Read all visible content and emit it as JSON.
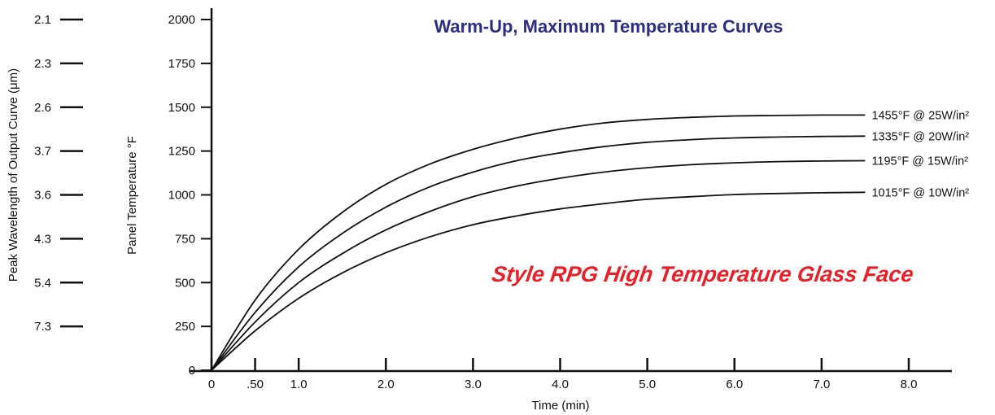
{
  "chart_data": {
    "type": "line",
    "title": "Warm-Up, Maximum Temperature Curves",
    "subtitle": "Style RPG High Temperature Glass Face",
    "colors": {
      "title": "#2b2e83",
      "subtitle": "#e8202a",
      "line": "#111111"
    },
    "xlabel": "Time (min)",
    "ylabel": "Panel Temperature °F",
    "secondary_ylabel": "Peak Wavelength of Output Curve (μm)",
    "xlim": [
      0,
      8.5
    ],
    "ylim": [
      0,
      2000
    ],
    "grid": false,
    "x_ticks": [
      {
        "value": 0,
        "label": "0"
      },
      {
        "value": 0.5,
        "label": ".50"
      },
      {
        "value": 1.0,
        "label": "1.0"
      },
      {
        "value": 2.0,
        "label": "2.0"
      },
      {
        "value": 3.0,
        "label": "3.0"
      },
      {
        "value": 4.0,
        "label": "4.0"
      },
      {
        "value": 5.0,
        "label": "5.0"
      },
      {
        "value": 6.0,
        "label": "6.0"
      },
      {
        "value": 7.0,
        "label": "7.0"
      },
      {
        "value": 8.0,
        "label": "8.0"
      }
    ],
    "y_ticks": [
      {
        "value": 0,
        "label": "0"
      },
      {
        "value": 250,
        "label": "250"
      },
      {
        "value": 500,
        "label": "500"
      },
      {
        "value": 750,
        "label": "750"
      },
      {
        "value": 1000,
        "label": "1000"
      },
      {
        "value": 1250,
        "label": "1250"
      },
      {
        "value": 1500,
        "label": "1500"
      },
      {
        "value": 1750,
        "label": "1750"
      },
      {
        "value": 2000,
        "label": "2000"
      }
    ],
    "wavelength_ticks": [
      {
        "value": 2000,
        "label": "2.1"
      },
      {
        "value": 1750,
        "label": "2.3"
      },
      {
        "value": 1500,
        "label": "2.6"
      },
      {
        "value": 1250,
        "label": "3.7"
      },
      {
        "value": 1000,
        "label": "3.6"
      },
      {
        "value": 750,
        "label": "4.3"
      },
      {
        "value": 500,
        "label": "5.4"
      },
      {
        "value": 250,
        "label": "7.3"
      }
    ],
    "series": [
      {
        "name": "1455°F @ 25W/in²",
        "x": [
          0,
          0.5,
          1,
          1.5,
          2,
          2.5,
          3,
          3.5,
          4,
          4.5,
          5,
          5.5,
          6,
          6.5,
          7,
          7.5
        ],
        "y": [
          0,
          400,
          690,
          900,
          1060,
          1175,
          1260,
          1325,
          1375,
          1410,
          1430,
          1442,
          1450,
          1453,
          1455,
          1455
        ]
      },
      {
        "name": "1335°F @ 20W/in²",
        "x": [
          0,
          0.5,
          1,
          1.5,
          2,
          2.5,
          3,
          3.5,
          4,
          4.5,
          5,
          5.5,
          6,
          6.5,
          7,
          7.5
        ],
        "y": [
          0,
          330,
          590,
          780,
          930,
          1045,
          1130,
          1195,
          1240,
          1275,
          1300,
          1315,
          1325,
          1330,
          1333,
          1335
        ]
      },
      {
        "name": "1195°F @ 15W/in²",
        "x": [
          0,
          0.5,
          1,
          1.5,
          2,
          2.5,
          3,
          3.5,
          4,
          4.5,
          5,
          5.5,
          6,
          6.5,
          7,
          7.5
        ],
        "y": [
          0,
          275,
          500,
          665,
          800,
          905,
          990,
          1050,
          1095,
          1130,
          1155,
          1172,
          1183,
          1190,
          1193,
          1195
        ]
      },
      {
        "name": "1015°F @ 10W/in²",
        "x": [
          0,
          0.5,
          1,
          1.5,
          2,
          2.5,
          3,
          3.5,
          4,
          4.5,
          5,
          5.5,
          6,
          6.5,
          7,
          7.5
        ],
        "y": [
          0,
          225,
          410,
          555,
          670,
          760,
          830,
          880,
          920,
          950,
          975,
          990,
          1002,
          1008,
          1012,
          1015
        ]
      }
    ]
  }
}
